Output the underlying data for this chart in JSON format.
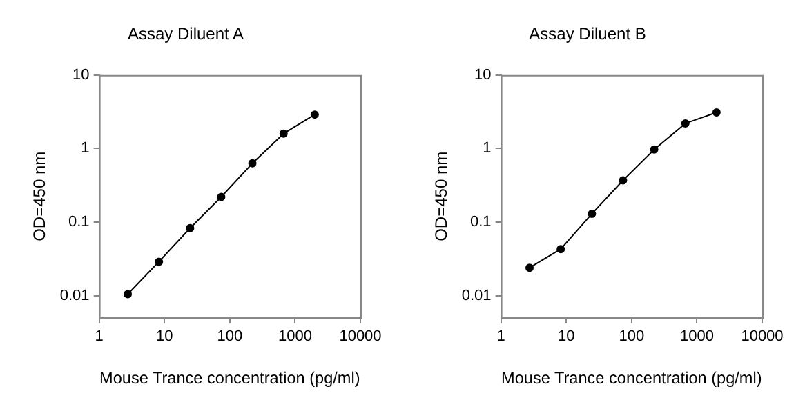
{
  "chart_data": [
    {
      "type": "line",
      "title": "Assay Diluent A",
      "xlabel": "Mouse Trance concentration (pg/ml)",
      "ylabel": "OD=450 nm",
      "log": "xy",
      "grid": false,
      "legend": false,
      "marker": "circle",
      "line_style": "solid",
      "x": [
        2.74,
        8.23,
        24.7,
        74,
        222,
        667,
        2000
      ],
      "series": [
        {
          "color": "#000000",
          "values": [
            0.0105,
            0.029,
            0.083,
            0.22,
            0.63,
            1.6,
            2.9
          ]
        }
      ],
      "xlim": [
        1,
        10000
      ],
      "xticks": [
        1,
        10,
        100,
        1000,
        10000
      ],
      "ylim": [
        0.005,
        10
      ],
      "yticks": [
        0.01,
        0.1,
        1,
        10
      ]
    },
    {
      "type": "line",
      "title": "Assay Diluent B",
      "xlabel": "Mouse Trance concentration (pg/ml)",
      "ylabel": "OD=450 nm",
      "log": "xy",
      "grid": false,
      "legend": false,
      "marker": "circle",
      "line_style": "solid",
      "x": [
        2.74,
        8.23,
        24.7,
        74,
        222,
        667,
        2000
      ],
      "series": [
        {
          "color": "#000000",
          "values": [
            0.024,
            0.043,
            0.13,
            0.37,
            0.97,
            2.2,
            3.1
          ]
        }
      ],
      "xlim": [
        1,
        10000
      ],
      "xticks": [
        1,
        10,
        100,
        1000,
        10000
      ],
      "ylim": [
        0.005,
        10
      ],
      "yticks": [
        0.01,
        0.1,
        1,
        10
      ]
    }
  ]
}
